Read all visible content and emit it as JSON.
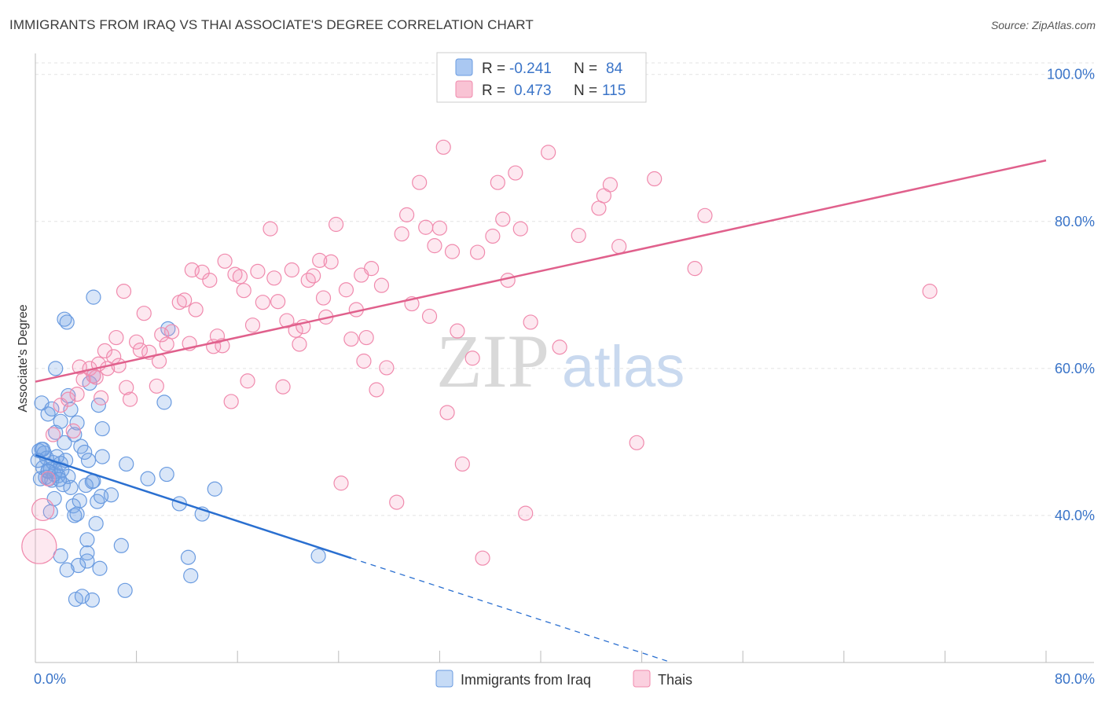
{
  "title": "IMMIGRANTS FROM IRAQ VS THAI ASSOCIATE'S DEGREE CORRELATION CHART",
  "source": "Source: ZipAtlas.com",
  "watermark": {
    "zip": "ZIP",
    "atlas": "atlas"
  },
  "legend_top": [
    {
      "r_label": "R =",
      "r_value": "-0.241",
      "n_label": "N =",
      "n_value": "84",
      "color": "#6a9be0"
    },
    {
      "r_label": "R =",
      "r_value": "0.473",
      "n_label": "N =",
      "n_value": "115",
      "color": "#f08aad"
    }
  ],
  "colors": {
    "iraq": "#6a9be0",
    "thai": "#f08aad",
    "iraq_line": "#2a6fd0",
    "thai_line": "#e0608c",
    "tick_text": "#3a74c8"
  },
  "chart_data": {
    "type": "scatter",
    "title": "IMMIGRANTS FROM IRAQ VS THAI ASSOCIATE'S DEGREE CORRELATION CHART",
    "xlabel": "",
    "ylabel": "Associate's Degree",
    "xlim": [
      0,
      80
    ],
    "ylim": [
      20,
      102
    ],
    "x_tick_labels": [
      "0.0%",
      "80.0%"
    ],
    "y_ticks": [
      40,
      60,
      80,
      100
    ],
    "y_tick_labels": [
      "40.0%",
      "60.0%",
      "80.0%",
      "100.0%"
    ],
    "grid": true,
    "legend_position": "bottom",
    "series": [
      {
        "name": "Immigrants from Iraq",
        "color": "#6a9be0",
        "trend": {
          "x": [
            0,
            25
          ],
          "y": [
            48.2,
            34.2
          ],
          "dashed_to": [
            50,
            20.2
          ]
        },
        "points": [
          [
            0.3,
            48.8
          ],
          [
            0.4,
            45.0
          ],
          [
            0.5,
            49.0
          ],
          [
            0.6,
            46.5
          ],
          [
            0.7,
            48.5
          ],
          [
            0.8,
            45.2
          ],
          [
            0.9,
            47.8
          ],
          [
            1.0,
            46.1
          ],
          [
            1.1,
            45.0
          ],
          [
            1.2,
            46.3
          ],
          [
            1.3,
            44.8
          ],
          [
            1.4,
            47.2
          ],
          [
            1.5,
            45.6
          ],
          [
            1.6,
            46.0
          ],
          [
            1.8,
            45.4
          ],
          [
            2.0,
            47.1
          ],
          [
            2.2,
            44.2
          ],
          [
            2.4,
            47.5
          ],
          [
            2.6,
            45.3
          ],
          [
            2.8,
            43.8
          ],
          [
            0.5,
            55.3
          ],
          [
            1.0,
            53.8
          ],
          [
            1.3,
            54.5
          ],
          [
            1.6,
            51.3
          ],
          [
            2.0,
            52.8
          ],
          [
            2.3,
            49.9
          ],
          [
            2.6,
            56.3
          ],
          [
            2.8,
            54.4
          ],
          [
            3.1,
            51.0
          ],
          [
            3.3,
            52.6
          ],
          [
            3.6,
            49.4
          ],
          [
            3.9,
            48.6
          ],
          [
            4.2,
            47.5
          ],
          [
            4.6,
            44.7
          ],
          [
            4.9,
            41.9
          ],
          [
            5.2,
            42.6
          ],
          [
            1.6,
            60.0
          ],
          [
            2.3,
            66.7
          ],
          [
            2.5,
            66.3
          ],
          [
            4.3,
            58.0
          ],
          [
            4.6,
            59.0
          ],
          [
            4.6,
            69.7
          ],
          [
            5.0,
            55.0
          ],
          [
            5.3,
            51.8
          ],
          [
            5.3,
            48.0
          ],
          [
            0.6,
            49.0
          ],
          [
            1.2,
            40.5
          ],
          [
            1.5,
            42.3
          ],
          [
            3.0,
            41.3
          ],
          [
            3.1,
            40.0
          ],
          [
            3.3,
            40.2
          ],
          [
            3.5,
            42.0
          ],
          [
            4.0,
            44.1
          ],
          [
            4.5,
            44.6
          ],
          [
            4.8,
            38.9
          ],
          [
            4.1,
            36.7
          ],
          [
            4.1,
            34.9
          ],
          [
            4.1,
            33.8
          ],
          [
            5.1,
            32.8
          ],
          [
            3.4,
            33.2
          ],
          [
            2.0,
            34.5
          ],
          [
            2.5,
            32.6
          ],
          [
            3.2,
            28.6
          ],
          [
            3.7,
            29.0
          ],
          [
            4.5,
            28.5
          ],
          [
            6.0,
            42.8
          ],
          [
            6.8,
            35.9
          ],
          [
            7.1,
            29.8
          ],
          [
            7.2,
            47.0
          ],
          [
            8.9,
            45.0
          ],
          [
            10.4,
            45.6
          ],
          [
            10.2,
            55.4
          ],
          [
            10.5,
            65.4
          ],
          [
            11.4,
            41.6
          ],
          [
            12.1,
            34.3
          ],
          [
            12.3,
            31.8
          ],
          [
            13.2,
            40.2
          ],
          [
            14.2,
            43.6
          ],
          [
            22.4,
            34.5
          ],
          [
            1.0,
            46.0
          ],
          [
            1.7,
            48.0
          ],
          [
            2.1,
            46.2
          ],
          [
            0.2,
            47.5
          ],
          [
            1.9,
            44.9
          ]
        ]
      },
      {
        "name": "Thais",
        "color": "#f08aad",
        "trend": {
          "x": [
            0,
            80
          ],
          "y": [
            58.2,
            88.3
          ]
        },
        "points": [
          [
            0.3,
            35.8
          ],
          [
            0.6,
            40.8
          ],
          [
            1.0,
            45.0
          ],
          [
            1.4,
            51.0
          ],
          [
            2.0,
            55.0
          ],
          [
            2.6,
            55.8
          ],
          [
            3.0,
            51.5
          ],
          [
            3.3,
            56.5
          ],
          [
            3.5,
            60.2
          ],
          [
            3.8,
            58.5
          ],
          [
            4.3,
            60.0
          ],
          [
            4.6,
            59.0
          ],
          [
            4.8,
            58.8
          ],
          [
            5.0,
            60.6
          ],
          [
            5.5,
            62.4
          ],
          [
            5.7,
            60.0
          ],
          [
            6.2,
            61.6
          ],
          [
            6.4,
            64.2
          ],
          [
            6.6,
            60.4
          ],
          [
            7.0,
            70.5
          ],
          [
            7.5,
            55.8
          ],
          [
            8.0,
            63.6
          ],
          [
            8.3,
            62.5
          ],
          [
            8.6,
            67.5
          ],
          [
            9.0,
            62.2
          ],
          [
            9.6,
            57.6
          ],
          [
            9.8,
            61.0
          ],
          [
            10.0,
            64.6
          ],
          [
            10.4,
            63.3
          ],
          [
            10.8,
            65.0
          ],
          [
            11.4,
            69.0
          ],
          [
            11.8,
            69.3
          ],
          [
            12.2,
            63.4
          ],
          [
            12.4,
            73.4
          ],
          [
            13.2,
            73.1
          ],
          [
            13.8,
            72.0
          ],
          [
            14.1,
            63.0
          ],
          [
            14.4,
            64.4
          ],
          [
            14.8,
            63.1
          ],
          [
            15.0,
            74.6
          ],
          [
            15.5,
            55.5
          ],
          [
            15.8,
            72.8
          ],
          [
            16.2,
            72.5
          ],
          [
            16.5,
            70.6
          ],
          [
            16.8,
            58.3
          ],
          [
            17.2,
            65.9
          ],
          [
            17.6,
            73.2
          ],
          [
            18.0,
            69.0
          ],
          [
            18.6,
            79.0
          ],
          [
            18.9,
            72.3
          ],
          [
            19.2,
            69.1
          ],
          [
            19.6,
            57.5
          ],
          [
            19.9,
            66.5
          ],
          [
            20.3,
            73.4
          ],
          [
            20.6,
            65.2
          ],
          [
            20.9,
            63.3
          ],
          [
            21.2,
            65.7
          ],
          [
            21.6,
            72.0
          ],
          [
            22.0,
            72.6
          ],
          [
            22.5,
            74.7
          ],
          [
            22.8,
            69.6
          ],
          [
            23.0,
            67.0
          ],
          [
            23.4,
            74.5
          ],
          [
            23.8,
            79.6
          ],
          [
            24.2,
            44.4
          ],
          [
            24.6,
            70.7
          ],
          [
            25.0,
            64.0
          ],
          [
            25.4,
            68.0
          ],
          [
            25.8,
            72.7
          ],
          [
            26.2,
            64.2
          ],
          [
            26.6,
            73.6
          ],
          [
            27.0,
            57.1
          ],
          [
            27.4,
            71.3
          ],
          [
            27.8,
            60.1
          ],
          [
            28.6,
            41.8
          ],
          [
            29.0,
            78.3
          ],
          [
            29.4,
            80.9
          ],
          [
            29.8,
            68.8
          ],
          [
            30.4,
            85.3
          ],
          [
            30.9,
            79.2
          ],
          [
            31.2,
            67.1
          ],
          [
            31.6,
            76.7
          ],
          [
            32.0,
            79.1
          ],
          [
            32.3,
            90.1
          ],
          [
            32.6,
            54.0
          ],
          [
            33.0,
            75.9
          ],
          [
            33.4,
            65.1
          ],
          [
            33.8,
            47.0
          ],
          [
            34.6,
            61.4
          ],
          [
            35.0,
            75.8
          ],
          [
            35.4,
            34.2
          ],
          [
            36.2,
            78.0
          ],
          [
            36.6,
            85.3
          ],
          [
            37.0,
            80.3
          ],
          [
            37.4,
            72.0
          ],
          [
            38.0,
            86.6
          ],
          [
            38.4,
            79.0
          ],
          [
            38.8,
            40.3
          ],
          [
            39.2,
            66.3
          ],
          [
            40.6,
            89.4
          ],
          [
            41.5,
            62.9
          ],
          [
            43.0,
            78.1
          ],
          [
            44.6,
            81.8
          ],
          [
            45.0,
            83.5
          ],
          [
            45.5,
            85.0
          ],
          [
            46.2,
            76.6
          ],
          [
            47.6,
            49.9
          ],
          [
            49.0,
            85.8
          ],
          [
            52.2,
            73.6
          ],
          [
            53.0,
            80.8
          ],
          [
            70.8,
            70.5
          ],
          [
            5.2,
            56.0
          ],
          [
            7.2,
            57.4
          ],
          [
            12.7,
            68.0
          ],
          [
            26.0,
            61.0
          ]
        ]
      }
    ]
  },
  "bottom_legend": [
    {
      "label": "Immigrants from Iraq",
      "color": "#6a9be0"
    },
    {
      "label": "Thais",
      "color": "#f08aad"
    }
  ]
}
